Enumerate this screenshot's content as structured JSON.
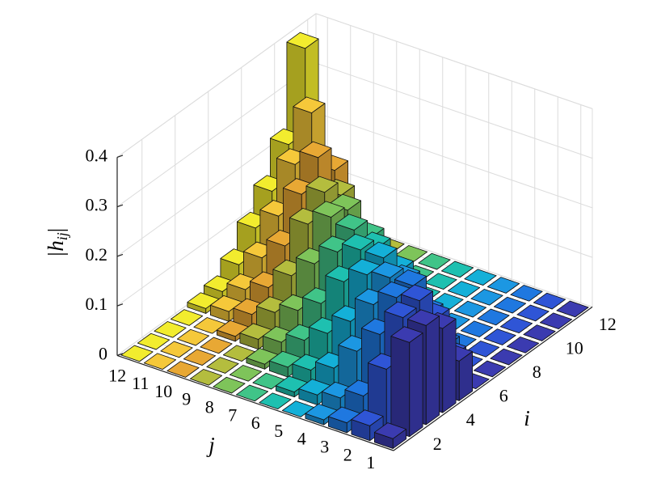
{
  "chart_data": {
    "type": "bar3",
    "xlabel": "i",
    "ylabel": "j",
    "zlabel": [
      "|h",
      "ij",
      "|"
    ],
    "x": [
      1,
      2,
      3,
      4,
      5,
      6,
      7,
      8,
      9,
      10,
      11,
      12
    ],
    "y": [
      1,
      2,
      3,
      4,
      5,
      6,
      7,
      8,
      9,
      10,
      11,
      12
    ],
    "values": [
      [
        0.02,
        0.19,
        0.2,
        0.17,
        0.08,
        0,
        0,
        0,
        0,
        0,
        0,
        0
      ],
      [
        0.03,
        0.12,
        0.2,
        0.21,
        0.15,
        0.05,
        0,
        0,
        0,
        0,
        0,
        0
      ],
      [
        0.02,
        0.05,
        0.15,
        0.2,
        0.2,
        0.12,
        0.03,
        0,
        0,
        0,
        0,
        0
      ],
      [
        0.01,
        0.03,
        0.1,
        0.17,
        0.2,
        0.17,
        0.08,
        0.02,
        0,
        0,
        0,
        0
      ],
      [
        0,
        0.02,
        0.05,
        0.12,
        0.19,
        0.2,
        0.15,
        0.05,
        0,
        0,
        0,
        0
      ],
      [
        0,
        0.01,
        0.03,
        0.08,
        0.16,
        0.2,
        0.18,
        0.1,
        0.02,
        0,
        0,
        0
      ],
      [
        0,
        0,
        0.02,
        0.05,
        0.1,
        0.18,
        0.2,
        0.16,
        0.06,
        0,
        0,
        0
      ],
      [
        0,
        0,
        0.01,
        0.03,
        0.07,
        0.14,
        0.21,
        0.2,
        0.12,
        0.02,
        0,
        0
      ],
      [
        0,
        0,
        0,
        0.02,
        0.05,
        0.1,
        0.18,
        0.22,
        0.19,
        0.08,
        0,
        0
      ],
      [
        0,
        0,
        0,
        0.01,
        0.03,
        0.06,
        0.12,
        0.2,
        0.25,
        0.2,
        0.03,
        0
      ],
      [
        0,
        0,
        0,
        0,
        0.02,
        0.04,
        0.08,
        0.14,
        0.22,
        0.3,
        0.05,
        0
      ],
      [
        0,
        0,
        0,
        0,
        0.01,
        0.02,
        0.05,
        0.1,
        0.15,
        0.22,
        0.39,
        0.02
      ]
    ],
    "colors": [
      "#3b3bb0",
      "#2f55d6",
      "#1f78e0",
      "#1c97e2",
      "#14b0d8",
      "#1ec0b0",
      "#40c488",
      "#7ec45a",
      "#b4bd3e",
      "#e8a834",
      "#f5c83a",
      "#f2ec2e"
    ],
    "xlim": [
      0.5,
      12.5
    ],
    "ylim": [
      0.5,
      12.5
    ],
    "zlim": [
      0,
      0.4
    ],
    "xticks": [
      2,
      4,
      6,
      8,
      10,
      12
    ],
    "yticks": [
      1,
      2,
      3,
      4,
      5,
      6,
      7,
      8,
      9,
      10,
      11,
      12
    ],
    "zticks": [
      0,
      0.1,
      0.2,
      0.3,
      0.4
    ],
    "grid": true
  }
}
